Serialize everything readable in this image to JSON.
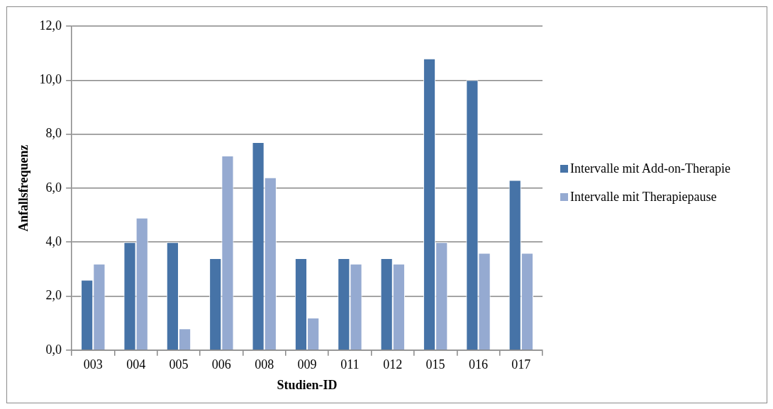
{
  "chart_data": {
    "type": "bar",
    "xlabel": "Studien-ID",
    "ylabel": "Anfallsfrequenz",
    "categories": [
      "003",
      "004",
      "005",
      "006",
      "008",
      "009",
      "011",
      "012",
      "015",
      "016",
      "017"
    ],
    "series": [
      {
        "name": "Intervalle mit Add-on-Therapie",
        "color": "#4673a7",
        "values": [
          2.6,
          4.0,
          4.0,
          3.4,
          7.7,
          3.4,
          3.4,
          3.4,
          10.8,
          10.0,
          6.3
        ]
      },
      {
        "name": "Intervalle mit Therapiepause",
        "color": "#95aad1",
        "values": [
          3.2,
          4.9,
          0.8,
          7.2,
          6.4,
          1.2,
          3.2,
          3.2,
          4.0,
          3.6,
          3.6
        ]
      }
    ],
    "ylim": [
      0,
      12
    ],
    "yticks": [
      {
        "value": 0,
        "label": "0,0"
      },
      {
        "value": 2,
        "label": "2,0"
      },
      {
        "value": 4,
        "label": "4,0"
      },
      {
        "value": 6,
        "label": "6,0"
      },
      {
        "value": 8,
        "label": "8,0"
      },
      {
        "value": 10,
        "label": "10,0"
      },
      {
        "value": 12,
        "label": "12,0"
      }
    ],
    "grid": "y",
    "legend": "right"
  }
}
